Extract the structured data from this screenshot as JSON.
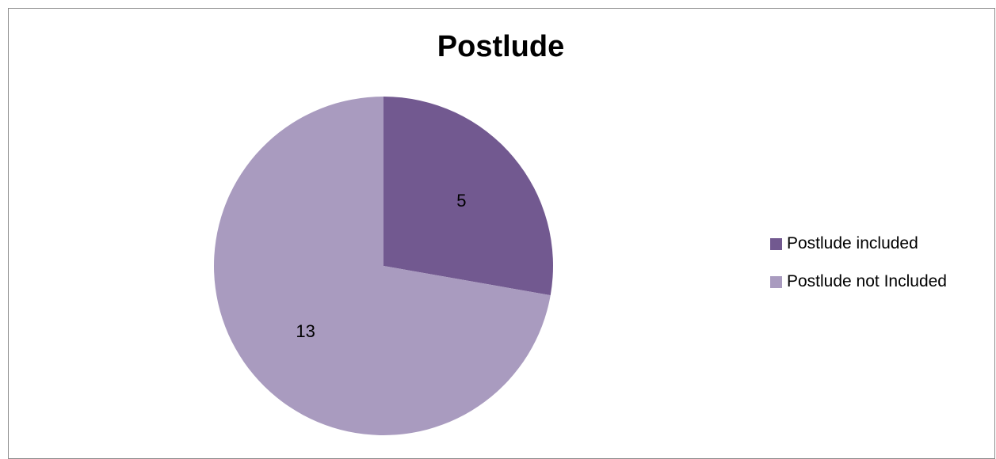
{
  "chart_data": {
    "type": "pie",
    "title": "Postlude",
    "categories": [
      "Postlude included",
      "Postlude not Included"
    ],
    "values": [
      5,
      13
    ],
    "data_labels": [
      "5",
      "13"
    ],
    "colors": [
      "#725990",
      "#a99bbf"
    ],
    "legend_position": "right",
    "start_angle_deg": 0
  }
}
